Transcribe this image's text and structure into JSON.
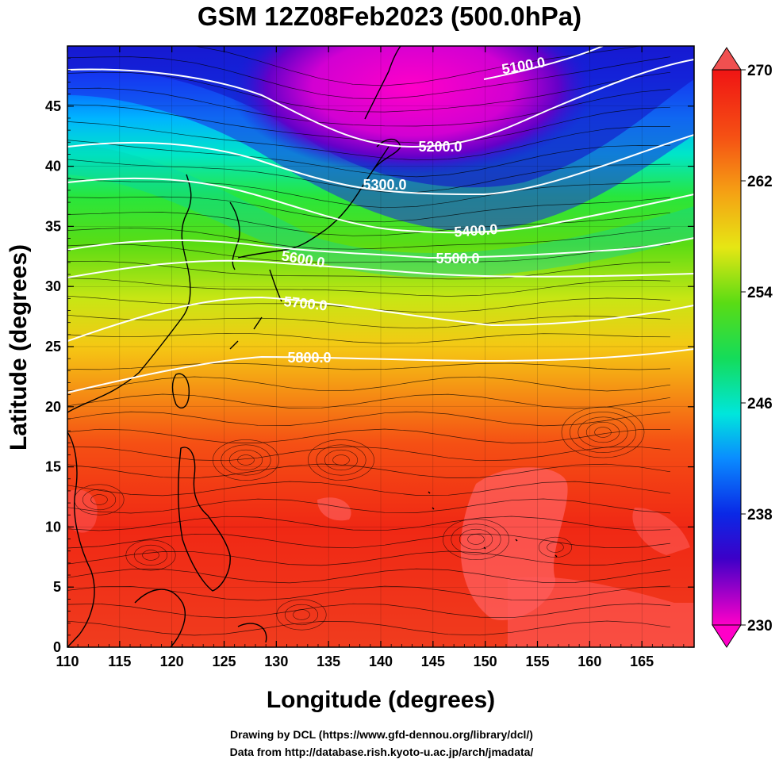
{
  "title": "GSM 12Z08Feb2023 (500.0hPa)",
  "xlabel": "Longitude (degrees)",
  "ylabel": "Latitude  (degrees)",
  "x_ticks": [
    "110",
    "115",
    "120",
    "125",
    "130",
    "135",
    "140",
    "145",
    "150",
    "155",
    "160",
    "165"
  ],
  "y_ticks": [
    "0",
    "5",
    "10",
    "15",
    "20",
    "25",
    "30",
    "35",
    "40",
    "45"
  ],
  "colorbar": {
    "ticks": [
      "270",
      "262",
      "254",
      "246",
      "238",
      "230"
    ],
    "min": 230,
    "max": 270
  },
  "contours": [
    {
      "label": "5100.0"
    },
    {
      "label": "5200.0"
    },
    {
      "label": "5300.0"
    },
    {
      "label": "5400.0"
    },
    {
      "label": "5500.0"
    },
    {
      "label": "5600.0"
    },
    {
      "label": "5700.0"
    },
    {
      "label": "5800.0"
    }
  ],
  "credits": {
    "line1": "Drawing by DCL (https://www.gfd-dennou.org/library/dcl/)",
    "line2": "Data from http://database.rish.kyoto-u.ac.jp/arch/jmadata/"
  },
  "chart_data": {
    "type": "heatmap",
    "title": "GSM 12Z08Feb2023 (500.0hPa)",
    "xlabel": "Longitude (degrees)",
    "ylabel": "Latitude  (degrees)",
    "xlim": [
      110,
      170
    ],
    "ylim": [
      0,
      50
    ],
    "colorbar_range": [
      230,
      270
    ],
    "colorbar_ticks": [
      230,
      238,
      246,
      254,
      262,
      270
    ],
    "temperature_bands_by_latitude": [
      {
        "lat": 48,
        "value": 232
      },
      {
        "lat": 45,
        "value": 236
      },
      {
        "lat": 40,
        "value": 244
      },
      {
        "lat": 35,
        "value": 252
      },
      {
        "lat": 30,
        "value": 257
      },
      {
        "lat": 25,
        "value": 261
      },
      {
        "lat": 20,
        "value": 265
      },
      {
        "lat": 15,
        "value": 267
      },
      {
        "lat": 10,
        "value": 268
      },
      {
        "lat": 5,
        "value": 267
      },
      {
        "lat": 0,
        "value": 266
      }
    ],
    "contour_levels": [
      5100,
      5200,
      5300,
      5400,
      5500,
      5600,
      5700,
      5800
    ]
  }
}
